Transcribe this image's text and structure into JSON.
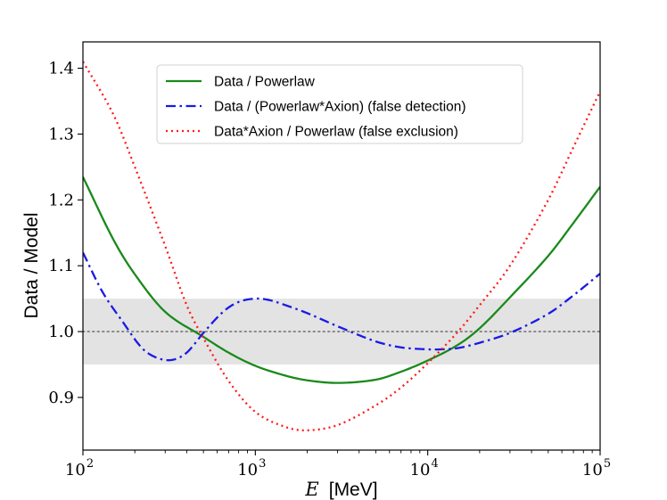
{
  "chart_data": {
    "type": "line",
    "x_scale": "log",
    "xlim": [
      100,
      100000
    ],
    "ylim": [
      0.82,
      1.44
    ],
    "xlabel_var": "E",
    "xlabel_unit": "[MeV]",
    "ylabel": "Data / Model",
    "x_ticks": [
      {
        "base": "10",
        "exp": "2",
        "value": 100
      },
      {
        "base": "10",
        "exp": "3",
        "value": 1000
      },
      {
        "base": "10",
        "exp": "4",
        "value": 10000
      },
      {
        "base": "10",
        "exp": "5",
        "value": 100000
      }
    ],
    "y_ticks": [
      {
        "label": "0.9",
        "value": 0.9
      },
      {
        "label": "1.0",
        "value": 1.0
      },
      {
        "label": "1.1",
        "value": 1.1
      },
      {
        "label": "1.2",
        "value": 1.2
      },
      {
        "label": "1.3",
        "value": 1.3
      },
      {
        "label": "1.4",
        "value": 1.4
      }
    ],
    "band": {
      "lower": 0.95,
      "upper": 1.05,
      "color": "#e3e3e3"
    },
    "reference_line": {
      "y": 1.0,
      "color": "#8a8a8a"
    },
    "legend_position": "top-center",
    "series": [
      {
        "name": "Data / Powerlaw",
        "color": "#1a8a1a",
        "dash": "solid",
        "x": [
          100,
          150,
          200,
          300,
          500,
          700,
          1000,
          1500,
          2000,
          3000,
          5000,
          7000,
          10000,
          15000,
          20000,
          30000,
          50000,
          70000,
          100000
        ],
        "y": [
          1.235,
          1.14,
          1.087,
          1.03,
          0.992,
          0.968,
          0.948,
          0.933,
          0.926,
          0.922,
          0.927,
          0.939,
          0.956,
          0.98,
          1.005,
          1.052,
          1.115,
          1.165,
          1.22
        ]
      },
      {
        "name": "Data / (Powerlaw*Axion) (false detection)",
        "color": "#1a1ae6",
        "dash": "dashdot",
        "x": [
          100,
          130,
          170,
          220,
          270,
          330,
          400,
          500,
          650,
          800,
          1000,
          1200,
          1500,
          2000,
          3000,
          5000,
          7000,
          10000,
          12000,
          15000,
          20000,
          30000,
          50000,
          70000,
          100000
        ],
        "y": [
          1.12,
          1.06,
          1.015,
          0.975,
          0.96,
          0.957,
          0.968,
          0.998,
          1.03,
          1.045,
          1.05,
          1.048,
          1.04,
          1.028,
          1.008,
          0.985,
          0.976,
          0.973,
          0.973,
          0.975,
          0.983,
          0.998,
          1.027,
          1.055,
          1.088
        ]
      },
      {
        "name": "Data*Axion / Powerlaw (false exclusion)",
        "color": "#ff1a1a",
        "dash": "dotted",
        "x": [
          100,
          150,
          200,
          300,
          400,
          500,
          700,
          1000,
          1500,
          2000,
          3000,
          5000,
          7000,
          10000,
          15000,
          20000,
          30000,
          50000,
          70000,
          100000
        ],
        "y": [
          1.41,
          1.33,
          1.25,
          1.13,
          1.04,
          0.99,
          0.925,
          0.878,
          0.855,
          0.85,
          0.858,
          0.888,
          0.915,
          0.952,
          1.0,
          1.04,
          1.1,
          1.2,
          1.28,
          1.365
        ]
      }
    ]
  }
}
